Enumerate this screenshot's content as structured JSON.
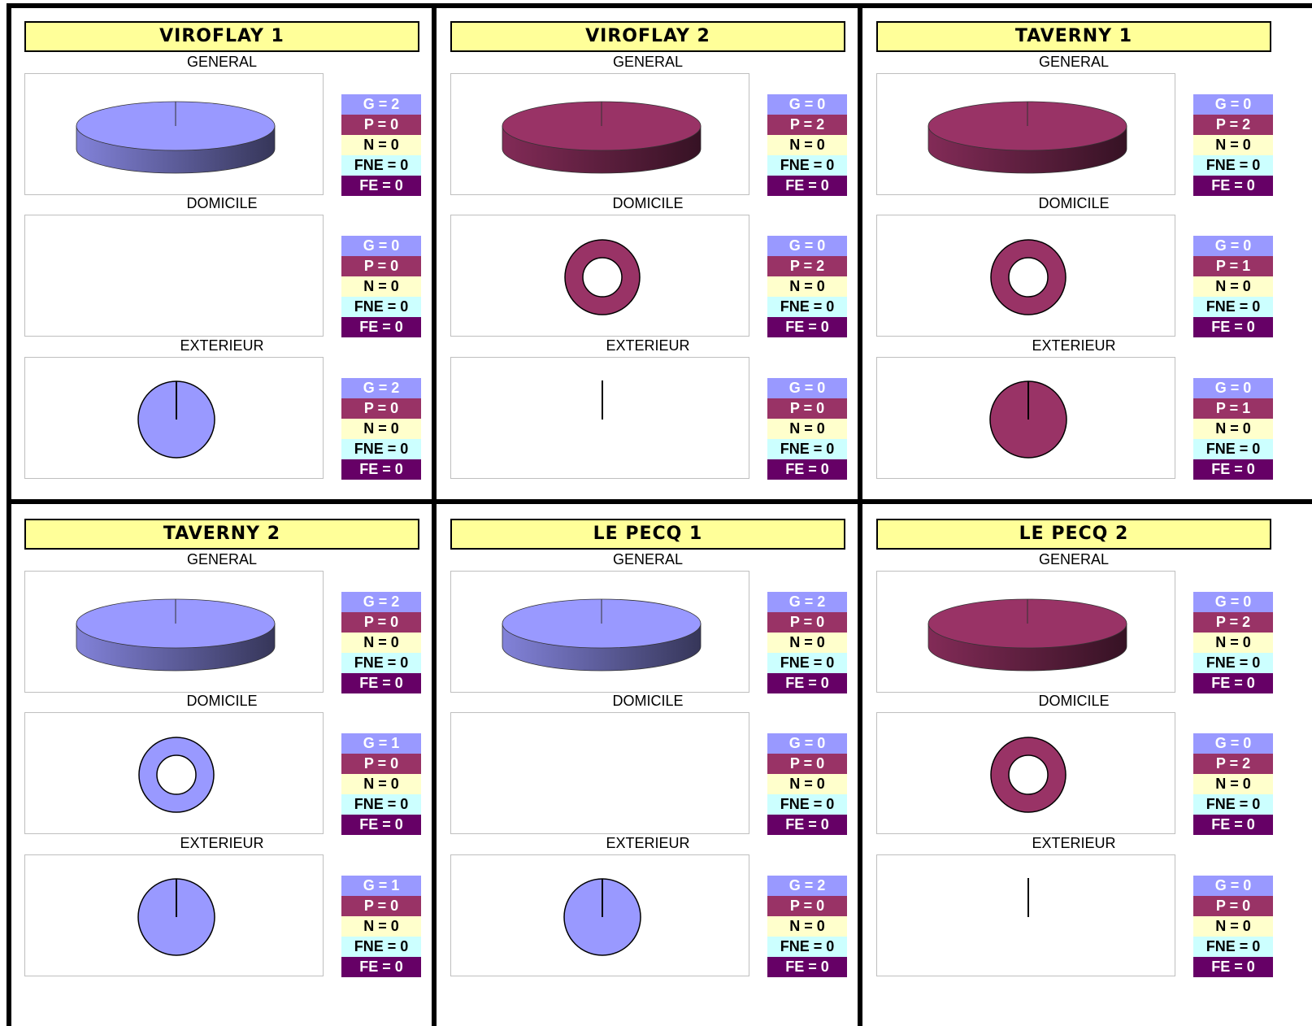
{
  "colors": {
    "G": "#9999ff",
    "P": "#993366",
    "N": "#ffffcc",
    "FNE": "#ccffff",
    "FE": "#660066",
    "title_bg": "#ffff99"
  },
  "section_labels": [
    "GENERAL",
    "DOMICILE",
    "EXTERIEUR"
  ],
  "chart_data": [
    {
      "type": "pie",
      "title": "VIROFLAY 1",
      "sections": [
        {
          "name": "GENERAL",
          "style": "pie3d",
          "legend": [
            "G = 2",
            "P = 0",
            "N = 0",
            "FNE = 0",
            "FE = 0"
          ],
          "values": {
            "G": 2,
            "P": 0,
            "N": 0,
            "FNE": 0,
            "FE": 0
          }
        },
        {
          "name": "DOMICILE",
          "style": "donut",
          "legend": [
            "G = 0",
            "P = 0",
            "N = 0",
            "FNE = 0",
            "FE = 0"
          ],
          "values": {
            "G": 0,
            "P": 0,
            "N": 0,
            "FNE": 0,
            "FE": 0
          }
        },
        {
          "name": "EXTERIEUR",
          "style": "pie",
          "legend": [
            "G = 2",
            "P = 0",
            "N = 0",
            "FNE = 0",
            "FE = 0"
          ],
          "values": {
            "G": 2,
            "P": 0,
            "N": 0,
            "FNE": 0,
            "FE": 0
          }
        }
      ]
    },
    {
      "type": "pie",
      "title": "VIROFLAY 2",
      "sections": [
        {
          "name": "GENERAL",
          "style": "pie3d",
          "legend": [
            "G = 0",
            "P = 2",
            "N = 0",
            "FNE = 0",
            "FE = 0"
          ],
          "values": {
            "G": 0,
            "P": 2,
            "N": 0,
            "FNE": 0,
            "FE": 0
          }
        },
        {
          "name": "DOMICILE",
          "style": "donut",
          "legend": [
            "G = 0",
            "P = 2",
            "N = 0",
            "FNE = 0",
            "FE = 0"
          ],
          "values": {
            "G": 0,
            "P": 2,
            "N": 0,
            "FNE": 0,
            "FE": 0
          }
        },
        {
          "name": "EXTERIEUR",
          "style": "pie",
          "legend": [
            "G = 0",
            "P = 0",
            "N = 0",
            "FNE = 0",
            "FE = 0"
          ],
          "values": {
            "G": 0,
            "P": 0,
            "N": 0,
            "FNE": 0,
            "FE": 0
          }
        }
      ]
    },
    {
      "type": "pie",
      "title": "TAVERNY 1",
      "sections": [
        {
          "name": "GENERAL",
          "style": "pie3d",
          "legend": [
            "G = 0",
            "P = 2",
            "N = 0",
            "FNE = 0",
            "FE = 0"
          ],
          "values": {
            "G": 0,
            "P": 2,
            "N": 0,
            "FNE": 0,
            "FE": 0
          }
        },
        {
          "name": "DOMICILE",
          "style": "donut",
          "legend": [
            "G = 0",
            "P = 1",
            "N = 0",
            "FNE = 0",
            "FE = 0"
          ],
          "values": {
            "G": 0,
            "P": 1,
            "N": 0,
            "FNE": 0,
            "FE": 0
          }
        },
        {
          "name": "EXTERIEUR",
          "style": "pie",
          "legend": [
            "G = 0",
            "P = 1",
            "N = 0",
            "FNE = 0",
            "FE = 0"
          ],
          "values": {
            "G": 0,
            "P": 1,
            "N": 0,
            "FNE": 0,
            "FE": 0
          }
        }
      ]
    },
    {
      "type": "pie",
      "title": "TAVERNY 2",
      "sections": [
        {
          "name": "GENERAL",
          "style": "pie3d",
          "legend": [
            "G = 2",
            "P = 0",
            "N = 0",
            "FNE = 0",
            "FE = 0"
          ],
          "values": {
            "G": 2,
            "P": 0,
            "N": 0,
            "FNE": 0,
            "FE": 0
          }
        },
        {
          "name": "DOMICILE",
          "style": "donut",
          "legend": [
            "G = 1",
            "P = 0",
            "N = 0",
            "FNE = 0",
            "FE = 0"
          ],
          "values": {
            "G": 1,
            "P": 0,
            "N": 0,
            "FNE": 0,
            "FE": 0
          }
        },
        {
          "name": "EXTERIEUR",
          "style": "pie",
          "legend": [
            "G = 1",
            "P = 0",
            "N = 0",
            "FNE = 0",
            "FE = 0"
          ],
          "values": {
            "G": 1,
            "P": 0,
            "N": 0,
            "FNE": 0,
            "FE": 0
          }
        }
      ]
    },
    {
      "type": "pie",
      "title": "LE PECQ 1",
      "sections": [
        {
          "name": "GENERAL",
          "style": "pie3d",
          "legend": [
            "G = 2",
            "P = 0",
            "N = 0",
            "FNE = 0",
            "FE = 0"
          ],
          "values": {
            "G": 2,
            "P": 0,
            "N": 0,
            "FNE": 0,
            "FE": 0
          }
        },
        {
          "name": "DOMICILE",
          "style": "donut",
          "legend": [
            "G = 0",
            "P = 0",
            "N = 0",
            "FNE = 0",
            "FE = 0"
          ],
          "values": {
            "G": 0,
            "P": 0,
            "N": 0,
            "FNE": 0,
            "FE": 0
          }
        },
        {
          "name": "EXTERIEUR",
          "style": "pie",
          "legend": [
            "G = 2",
            "P = 0",
            "N = 0",
            "FNE = 0",
            "FE = 0"
          ],
          "values": {
            "G": 2,
            "P": 0,
            "N": 0,
            "FNE": 0,
            "FE": 0
          }
        }
      ]
    },
    {
      "type": "pie",
      "title": "LE PECQ 2",
      "sections": [
        {
          "name": "GENERAL",
          "style": "pie3d",
          "legend": [
            "G = 0",
            "P = 2",
            "N = 0",
            "FNE = 0",
            "FE = 0"
          ],
          "values": {
            "G": 0,
            "P": 2,
            "N": 0,
            "FNE": 0,
            "FE": 0
          }
        },
        {
          "name": "DOMICILE",
          "style": "donut",
          "legend": [
            "G = 0",
            "P = 2",
            "N = 0",
            "FNE = 0",
            "FE = 0"
          ],
          "values": {
            "G": 0,
            "P": 2,
            "N": 0,
            "FNE": 0,
            "FE": 0
          }
        },
        {
          "name": "EXTERIEUR",
          "style": "pie",
          "legend": [
            "G = 0",
            "P = 0",
            "N = 0",
            "FNE = 0",
            "FE = 0"
          ],
          "values": {
            "G": 0,
            "P": 0,
            "N": 0,
            "FNE": 0,
            "FE": 0
          }
        }
      ]
    }
  ]
}
